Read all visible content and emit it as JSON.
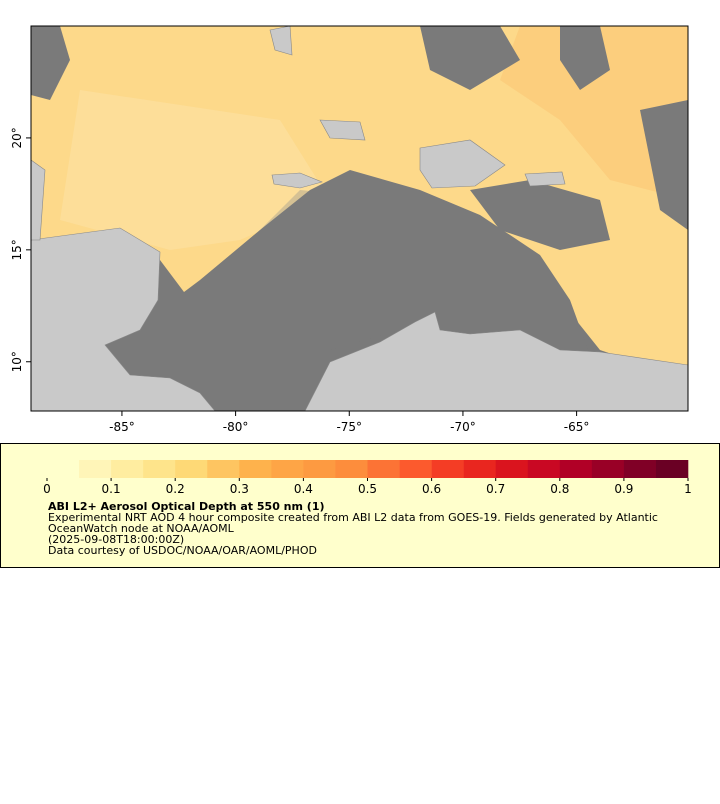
{
  "map": {
    "xlim": [
      -89,
      -60.1
    ],
    "ylim": [
      7.8,
      25
    ],
    "xticks": [
      {
        "value": -85,
        "label": "-85°"
      },
      {
        "value": -80,
        "label": "-80°"
      },
      {
        "value": -75,
        "label": "-75°"
      },
      {
        "value": -70,
        "label": "-70°"
      },
      {
        "value": -65,
        "label": "-65°"
      }
    ],
    "yticks": [
      {
        "value": 10,
        "label": "10°"
      },
      {
        "value": 15,
        "label": "15°"
      },
      {
        "value": 20,
        "label": "20°"
      }
    ]
  },
  "colorbar": {
    "clim": [
      0,
      1
    ],
    "colors": [
      "#ffffcc",
      "#fff5b8",
      "#ffeda0",
      "#fee48b",
      "#fed976",
      "#fec561",
      "#feb24c",
      "#fea546",
      "#fd9a41",
      "#fd8d3c",
      "#fc7335",
      "#fc5a2d",
      "#f43d25",
      "#e9261f",
      "#da141e",
      "#c90823",
      "#b10026",
      "#990026",
      "#800026",
      "#6a0024"
    ],
    "ticks": [
      0,
      0.1,
      0.2,
      0.3,
      0.4,
      0.5,
      0.6,
      0.7,
      0.8,
      0.9,
      1
    ]
  },
  "legend": {
    "title": "ABI L2+ Aerosol Optical Depth at 550 nm (1)",
    "lines": [
      "Experimental NRT AOD 4 hour composite created from ABI L2 data from GOES-19. Fields generated by Atlantic",
      "OceanWatch node at NOAA/AOML",
      "(2025-09-08T18:00:00Z)",
      "Data courtesy of USDOC/NOAA/OAR/AOML/PHOD"
    ]
  }
}
